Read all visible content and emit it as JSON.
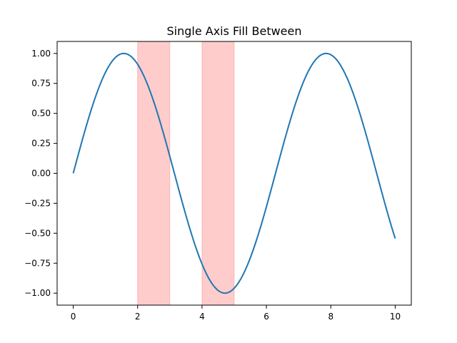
{
  "chart_data": {
    "type": "line",
    "title": "Single Axis Fill Between",
    "xlabel": "",
    "ylabel": "",
    "xlim": [
      -0.5,
      10.5
    ],
    "ylim": [
      -1.1,
      1.1
    ],
    "grid": false,
    "x_ticks": [
      0,
      2,
      4,
      6,
      8,
      10
    ],
    "x_tick_labels": [
      "0",
      "2",
      "4",
      "6",
      "8",
      "10"
    ],
    "y_ticks": [
      1.0,
      0.75,
      0.5,
      0.25,
      0.0,
      -0.25,
      -0.5,
      -0.75,
      -1.0
    ],
    "y_tick_labels": [
      "1.00",
      "0.75",
      "0.50",
      "0.25",
      "0.00",
      "−0.25",
      "−0.50",
      "−0.75",
      "−1.00"
    ],
    "series": [
      {
        "function": "sin(x)",
        "x_start": 0,
        "x_end": 10,
        "color": "#1f77b4"
      }
    ],
    "fill_regions": [
      {
        "x_start": 2,
        "x_end": 3,
        "color": "#ff0000",
        "opacity": 0.2
      },
      {
        "x_start": 4,
        "x_end": 5,
        "color": "#ff0000",
        "opacity": 0.2
      }
    ]
  }
}
